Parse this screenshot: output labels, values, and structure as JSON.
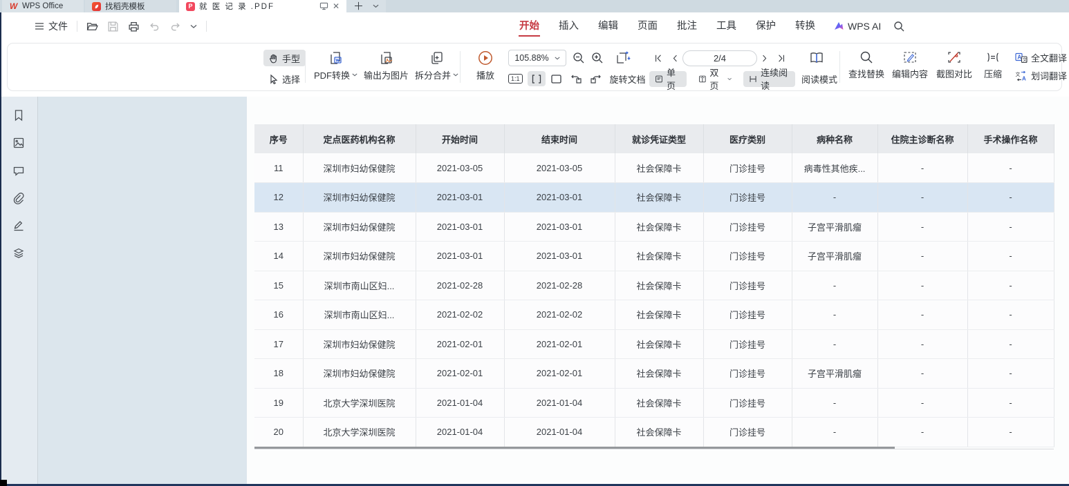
{
  "colors": {
    "accent_red": "#c63a43",
    "selected_row_blue": "#d9e6f3",
    "play_orange": "#cd5b2e",
    "icon_blue": "#3b66d4",
    "pdf_tab_red": "#f2485e"
  },
  "tabbar": {
    "tabs": [
      {
        "label": "WPS Office"
      },
      {
        "label": "找稻壳模板"
      },
      {
        "label": "就 医 记 录 .PDF",
        "active": true
      }
    ]
  },
  "menubar": {
    "file": "文件",
    "items": [
      "开始",
      "插入",
      "编辑",
      "页面",
      "批注",
      "工具",
      "保护",
      "转换"
    ],
    "active_index": 0,
    "wps_ai": "WPS AI"
  },
  "toolbar": {
    "hand": "手型",
    "select": "选择",
    "pdf_convert": "PDF转换",
    "export_image": "输出为图片",
    "split_merge": "拆分合并",
    "play": "播放",
    "zoom_value": "105.88%",
    "ratio": "1:1",
    "page_indicator": "2/4",
    "single_page": "单页",
    "double_page": "双页",
    "continuous_read": "连续阅读",
    "read_mode": "阅读模式",
    "rotate_document": "旋转文档",
    "find_replace": "查找替换",
    "edit_content": "编辑内容",
    "screenshot_compare": "截图对比",
    "compress": "压缩",
    "full_text_translate": "全文翻译",
    "word_translate": "划词翻译"
  },
  "document": {
    "table": {
      "headers": [
        "序号",
        "定点医药机构名称",
        "开始时间",
        "结束时间",
        "就诊凭证类型",
        "医疗类别",
        "病种名称",
        "住院主诊断名称",
        "手术操作名称"
      ],
      "selected_index": 1,
      "rows": [
        [
          "11",
          "深圳市妇幼保健院",
          "2021-03-05",
          "2021-03-05",
          "社会保障卡",
          "门诊挂号",
          "病毒性其他疾...",
          "-",
          "-"
        ],
        [
          "12",
          "深圳市妇幼保健院",
          "2021-03-01",
          "2021-03-01",
          "社会保障卡",
          "门诊挂号",
          "-",
          "-",
          "-"
        ],
        [
          "13",
          "深圳市妇幼保健院",
          "2021-03-01",
          "2021-03-01",
          "社会保障卡",
          "门诊挂号",
          "子宫平滑肌瘤",
          "-",
          "-"
        ],
        [
          "14",
          "深圳市妇幼保健院",
          "2021-03-01",
          "2021-03-01",
          "社会保障卡",
          "门诊挂号",
          "子宫平滑肌瘤",
          "-",
          "-"
        ],
        [
          "15",
          "深圳市南山区妇...",
          "2021-02-28",
          "2021-02-28",
          "社会保障卡",
          "门诊挂号",
          "-",
          "-",
          "-"
        ],
        [
          "16",
          "深圳市南山区妇...",
          "2021-02-02",
          "2021-02-02",
          "社会保障卡",
          "门诊挂号",
          "-",
          "-",
          "-"
        ],
        [
          "17",
          "深圳市妇幼保健院",
          "2021-02-01",
          "2021-02-01",
          "社会保障卡",
          "门诊挂号",
          "-",
          "-",
          "-"
        ],
        [
          "18",
          "深圳市妇幼保健院",
          "2021-02-01",
          "2021-02-01",
          "社会保障卡",
          "门诊挂号",
          "子宫平滑肌瘤",
          "-",
          "-"
        ],
        [
          "19",
          "北京大学深圳医院",
          "2021-01-04",
          "2021-01-04",
          "社会保障卡",
          "门诊挂号",
          "-",
          "-",
          "-"
        ],
        [
          "20",
          "北京大学深圳医院",
          "2021-01-04",
          "2021-01-04",
          "社会保障卡",
          "门诊挂号",
          "-",
          "-",
          "-"
        ]
      ]
    }
  }
}
